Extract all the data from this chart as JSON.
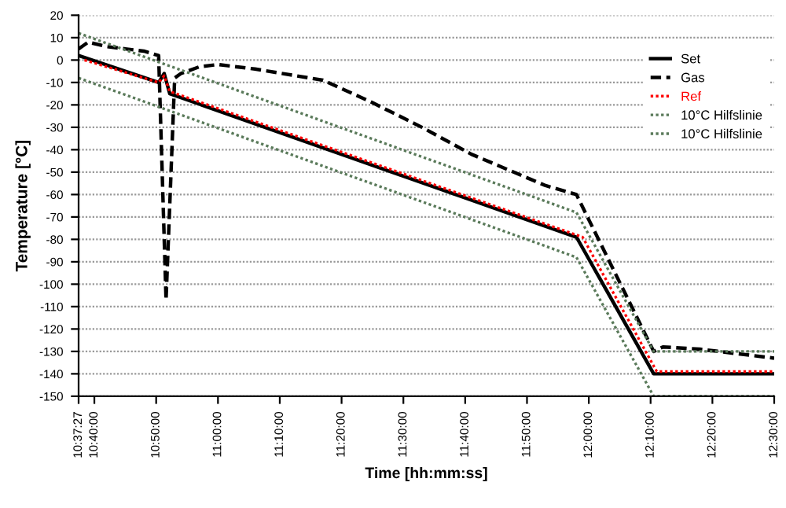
{
  "chart_data": {
    "type": "line",
    "xlabel": "Time [hh:mm:ss]",
    "ylabel": "Temperature [°C]",
    "xlim": [
      10.62417,
      12.5
    ],
    "xticks": [
      {
        "value": 10.62417,
        "label": "10:37:27"
      },
      {
        "value": 10.66667,
        "label": "10:40:00"
      },
      {
        "value": 10.83333,
        "label": "10:50:00"
      },
      {
        "value": 11,
        "label": "11:00:00"
      },
      {
        "value": 11.16667,
        "label": "11:10:00"
      },
      {
        "value": 11.33333,
        "label": "11:20:00"
      },
      {
        "value": 11.5,
        "label": "11:30:00"
      },
      {
        "value": 11.66667,
        "label": "11:40:00"
      },
      {
        "value": 11.83333,
        "label": "11:50:00"
      },
      {
        "value": 12,
        "label": "12:00:00"
      },
      {
        "value": 12.16667,
        "label": "12:10:00"
      },
      {
        "value": 12.33333,
        "label": "12:20:00"
      },
      {
        "value": 12.5,
        "label": "12:30:00"
      }
    ],
    "ylim": [
      -150,
      20
    ],
    "yticks": [
      -150,
      -140,
      -130,
      -120,
      -110,
      -100,
      -90,
      -80,
      -70,
      -60,
      -50,
      -40,
      -30,
      -20,
      -10,
      0,
      10,
      20
    ],
    "grid": "y",
    "legend": "top right",
    "series": [
      {
        "name": "Set",
        "color": "#000000",
        "line_style": "solid",
        "x": [
          10.62417,
          10.84,
          10.855,
          10.87,
          11.9667,
          12.175,
          12.5
        ],
        "values": [
          2,
          -10,
          -6,
          -15,
          -79,
          -140,
          -140
        ]
      },
      {
        "name": "Gas",
        "color": "#000000",
        "line_style": "dashed",
        "x": [
          10.62417,
          10.65,
          10.7,
          10.75,
          10.8,
          10.84,
          10.86,
          10.8833,
          10.9,
          10.95,
          11.0,
          11.05,
          11.1,
          11.2833,
          11.4167,
          11.55,
          11.6833,
          11.8833,
          11.9667,
          12.175,
          12.2,
          12.3,
          12.5
        ],
        "values": [
          5,
          8,
          6,
          5,
          4,
          2,
          -107,
          -8,
          -6,
          -3,
          -2,
          -3,
          -4,
          -9,
          -19,
          -30,
          -42,
          -56,
          -60,
          -130,
          -128,
          -129,
          -133
        ]
      },
      {
        "name": "Ref",
        "color": "#ff0000",
        "line_style": "dotted",
        "x": [
          10.64,
          10.84,
          10.855,
          10.87,
          11.9833,
          12.1833,
          12.5
        ],
        "values": [
          0,
          -10,
          -7,
          -14,
          -79,
          -139,
          -139
        ]
      },
      {
        "name": "10°C Hilfslinie",
        "color": "#5a7a5a",
        "line_style": "dotted",
        "x": [
          10.62417,
          11.9667,
          12.175,
          12.5
        ],
        "values": [
          12,
          -68,
          -130,
          -130
        ]
      },
      {
        "name": "10°C Hilfslinie",
        "color": "#5a7a5a",
        "line_style": "dotted",
        "x": [
          10.62417,
          11.9667,
          12.175,
          12.5
        ],
        "values": [
          -8,
          -88,
          -150,
          -150
        ]
      }
    ]
  }
}
